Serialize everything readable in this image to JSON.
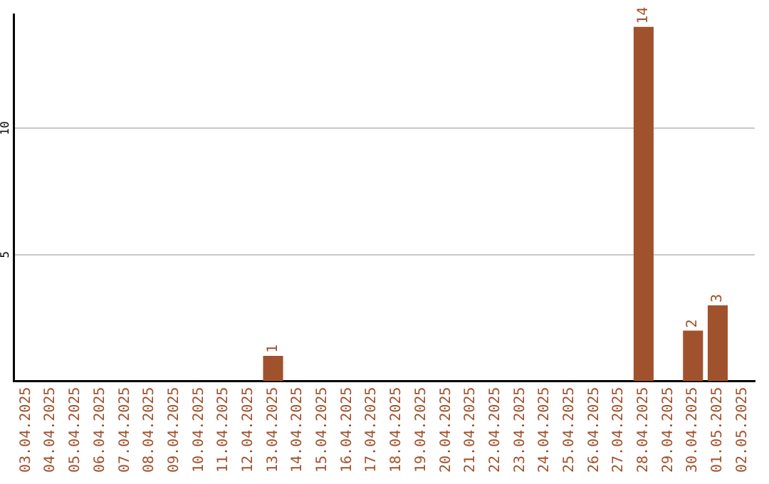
{
  "chart_data": {
    "type": "bar",
    "categories": [
      "03.04.2025",
      "04.04.2025",
      "05.04.2025",
      "06.04.2025",
      "07.04.2025",
      "08.04.2025",
      "09.04.2025",
      "10.04.2025",
      "11.04.2025",
      "12.04.2025",
      "13.04.2025",
      "14.04.2025",
      "15.04.2025",
      "16.04.2025",
      "17.04.2025",
      "18.04.2025",
      "19.04.2025",
      "20.04.2025",
      "21.04.2025",
      "22.04.2025",
      "23.04.2025",
      "24.04.2025",
      "25.04.2025",
      "26.04.2025",
      "27.04.2025",
      "28.04.2025",
      "29.04.2025",
      "30.04.2025",
      "01.05.2025",
      "02.05.2025"
    ],
    "values": [
      0,
      0,
      0,
      0,
      0,
      0,
      0,
      0,
      0,
      0,
      1,
      0,
      0,
      0,
      0,
      0,
      0,
      0,
      0,
      0,
      0,
      0,
      0,
      0,
      0,
      14,
      0,
      2,
      3,
      0
    ],
    "value_labels": [
      null,
      null,
      null,
      null,
      null,
      null,
      null,
      null,
      null,
      null,
      "1",
      null,
      null,
      null,
      null,
      null,
      null,
      null,
      null,
      null,
      null,
      null,
      null,
      null,
      null,
      "14",
      null,
      "2",
      "3",
      null
    ],
    "color": "#a0522d",
    "ylim": [
      0,
      14.5
    ],
    "yticks": [
      5,
      10
    ],
    "grid": "y",
    "legend": false
  }
}
